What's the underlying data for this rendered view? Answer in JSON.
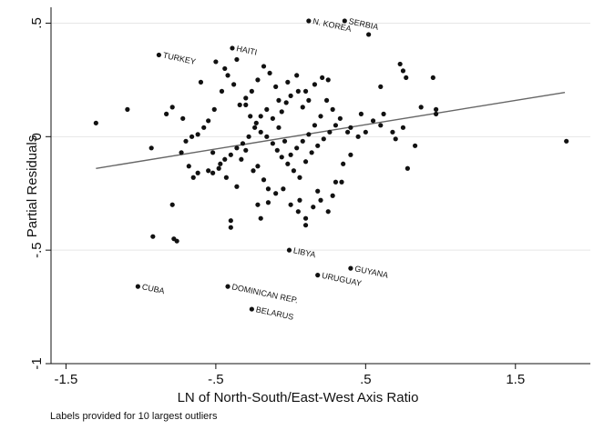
{
  "chart_data": {
    "type": "scatter",
    "xlabel": "LN of North-South/East-West Axis Ratio",
    "ylabel": "Partial Residuals",
    "xlim": [
      -1.6,
      2.0
    ],
    "ylim": [
      -1.0,
      0.57
    ],
    "x_ticks": [
      {
        "value": -1.5,
        "label": "-1.5"
      },
      {
        "value": -0.5,
        "label": "-.5"
      },
      {
        "value": 0.5,
        "label": ".5"
      },
      {
        "value": 1.5,
        "label": "1.5"
      }
    ],
    "y_ticks": [
      {
        "value": 0.5,
        "label": ".5"
      },
      {
        "value": 0,
        "label": "0"
      },
      {
        "value": -0.5,
        "label": "-.5"
      },
      {
        "value": -1,
        "label": "-1"
      }
    ],
    "grid": "horizontal",
    "fit_line": {
      "x": [
        -1.3,
        1.83
      ],
      "y": [
        -0.14,
        0.195
      ]
    },
    "labeled_points": [
      {
        "label": "N. KOREA",
        "x": 0.12,
        "y": 0.51
      },
      {
        "label": "SERBIA",
        "x": 0.36,
        "y": 0.51
      },
      {
        "label": "HAITI",
        "x": -0.39,
        "y": 0.39
      },
      {
        "label": "TURKEY",
        "x": -0.88,
        "y": 0.36
      },
      {
        "label": "LIBYA",
        "x": -0.01,
        "y": -0.5
      },
      {
        "label": "GUYANA",
        "x": 0.4,
        "y": -0.58
      },
      {
        "label": "URUGUAY",
        "x": 0.18,
        "y": -0.61
      },
      {
        "label": "CUBA",
        "x": -1.02,
        "y": -0.66
      },
      {
        "label": "DOMINICAN REP.",
        "x": -0.42,
        "y": -0.66
      },
      {
        "label": "BELARUS",
        "x": -0.26,
        "y": -0.76
      }
    ],
    "points": [
      [
        -1.3,
        0.06
      ],
      [
        -1.09,
        0.12
      ],
      [
        -0.92,
        -0.44
      ],
      [
        -0.76,
        -0.46
      ],
      [
        -0.78,
        -0.45
      ],
      [
        -0.79,
        -0.3
      ],
      [
        -0.93,
        -0.05
      ],
      [
        -0.83,
        0.1
      ],
      [
        -0.79,
        0.13
      ],
      [
        -0.72,
        0.08
      ],
      [
        -0.73,
        -0.07
      ],
      [
        -0.68,
        -0.13
      ],
      [
        -0.65,
        -0.18
      ],
      [
        -0.62,
        -0.16
      ],
      [
        -0.55,
        -0.15
      ],
      [
        -0.52,
        -0.16
      ],
      [
        -0.47,
        -0.12
      ],
      [
        -0.43,
        -0.18
      ],
      [
        -0.4,
        -0.37
      ],
      [
        -0.4,
        -0.4
      ],
      [
        -0.36,
        -0.22
      ],
      [
        -0.33,
        -0.1
      ],
      [
        -0.3,
        -0.06
      ],
      [
        -0.25,
        -0.15
      ],
      [
        -0.22,
        -0.13
      ],
      [
        -0.18,
        -0.19
      ],
      [
        -0.15,
        -0.23
      ],
      [
        -0.22,
        -0.3
      ],
      [
        -0.2,
        -0.36
      ],
      [
        -0.15,
        -0.29
      ],
      [
        -0.1,
        -0.25
      ],
      [
        -0.05,
        -0.23
      ],
      [
        0.0,
        -0.3
      ],
      [
        0.05,
        -0.33
      ],
      [
        0.1,
        -0.36
      ],
      [
        0.1,
        -0.39
      ],
      [
        0.15,
        -0.31
      ],
      [
        0.2,
        -0.28
      ],
      [
        0.25,
        -0.33
      ],
      [
        0.3,
        -0.2
      ],
      [
        0.35,
        -0.12
      ],
      [
        0.4,
        -0.08
      ],
      [
        0.38,
        0.02
      ],
      [
        0.45,
        0.0
      ],
      [
        0.5,
        0.02
      ],
      [
        0.55,
        0.07
      ],
      [
        0.6,
        0.05
      ],
      [
        0.62,
        0.1
      ],
      [
        0.68,
        0.02
      ],
      [
        0.7,
        -0.01
      ],
      [
        0.75,
        0.04
      ],
      [
        0.78,
        -0.14
      ],
      [
        0.83,
        -0.04
      ],
      [
        0.87,
        0.13
      ],
      [
        0.97,
        0.1
      ],
      [
        0.97,
        0.12
      ],
      [
        0.95,
        0.26
      ],
      [
        0.75,
        0.29
      ],
      [
        0.77,
        0.26
      ],
      [
        0.73,
        0.32
      ],
      [
        0.6,
        0.22
      ],
      [
        0.47,
        0.1
      ],
      [
        0.52,
        0.45
      ],
      [
        0.25,
        0.25
      ],
      [
        0.21,
        0.26
      ],
      [
        0.16,
        0.23
      ],
      [
        0.1,
        0.2
      ],
      [
        0.05,
        0.2
      ],
      [
        0.0,
        0.18
      ],
      [
        -0.03,
        0.15
      ],
      [
        -0.06,
        0.11
      ],
      [
        -0.1,
        0.22
      ],
      [
        -0.14,
        0.28
      ],
      [
        -0.18,
        0.31
      ],
      [
        -0.22,
        0.25
      ],
      [
        -0.26,
        0.2
      ],
      [
        -0.3,
        0.17
      ],
      [
        -0.34,
        0.14
      ],
      [
        -0.38,
        0.23
      ],
      [
        -0.42,
        0.27
      ],
      [
        -0.44,
        0.3
      ],
      [
        -0.46,
        0.2
      ],
      [
        -0.51,
        0.12
      ],
      [
        -0.55,
        0.07
      ],
      [
        -0.58,
        0.04
      ],
      [
        -0.62,
        0.01
      ],
      [
        -0.66,
        0.0
      ],
      [
        -0.7,
        -0.02
      ],
      [
        -0.6,
        0.24
      ],
      [
        -0.5,
        0.33
      ],
      [
        -0.36,
        0.34
      ],
      [
        -0.3,
        0.14
      ],
      [
        -0.27,
        0.09
      ],
      [
        -0.23,
        0.06
      ],
      [
        -0.2,
        0.02
      ],
      [
        -0.16,
        0.0
      ],
      [
        -0.12,
        -0.03
      ],
      [
        -0.09,
        -0.06
      ],
      [
        -0.06,
        -0.09
      ],
      [
        -0.02,
        -0.12
      ],
      [
        0.02,
        -0.15
      ],
      [
        0.06,
        -0.18
      ],
      [
        0.1,
        -0.11
      ],
      [
        0.14,
        -0.07
      ],
      [
        0.18,
        -0.04
      ],
      [
        0.22,
        -0.01
      ],
      [
        0.26,
        0.02
      ],
      [
        0.3,
        0.05
      ],
      [
        0.33,
        0.08
      ],
      [
        0.28,
        0.12
      ],
      [
        0.24,
        0.16
      ],
      [
        0.2,
        0.09
      ],
      [
        0.16,
        0.05
      ],
      [
        0.12,
        0.01
      ],
      [
        0.08,
        -0.02
      ],
      [
        0.04,
        -0.05
      ],
      [
        0.0,
        -0.08
      ],
      [
        -0.04,
        -0.02
      ],
      [
        -0.08,
        0.04
      ],
      [
        -0.12,
        0.08
      ],
      [
        -0.16,
        0.12
      ],
      [
        -0.2,
        0.09
      ],
      [
        -0.24,
        0.04
      ],
      [
        -0.28,
        0.0
      ],
      [
        -0.32,
        -0.03
      ],
      [
        -0.36,
        -0.05
      ],
      [
        -0.4,
        -0.08
      ],
      [
        -0.44,
        -0.1
      ],
      [
        -0.48,
        -0.14
      ],
      [
        -0.52,
        -0.07
      ],
      [
        0.08,
        0.13
      ],
      [
        0.12,
        0.16
      ],
      [
        0.04,
        0.27
      ],
      [
        -0.02,
        0.24
      ],
      [
        -0.08,
        0.16
      ],
      [
        0.4,
        0.04
      ],
      [
        0.34,
        -0.2
      ],
      [
        0.28,
        -0.26
      ],
      [
        0.18,
        -0.24
      ],
      [
        0.06,
        -0.28
      ],
      [
        1.84,
        -0.02
      ]
    ]
  },
  "footnote": "Labels provided for 10 largest outliers"
}
